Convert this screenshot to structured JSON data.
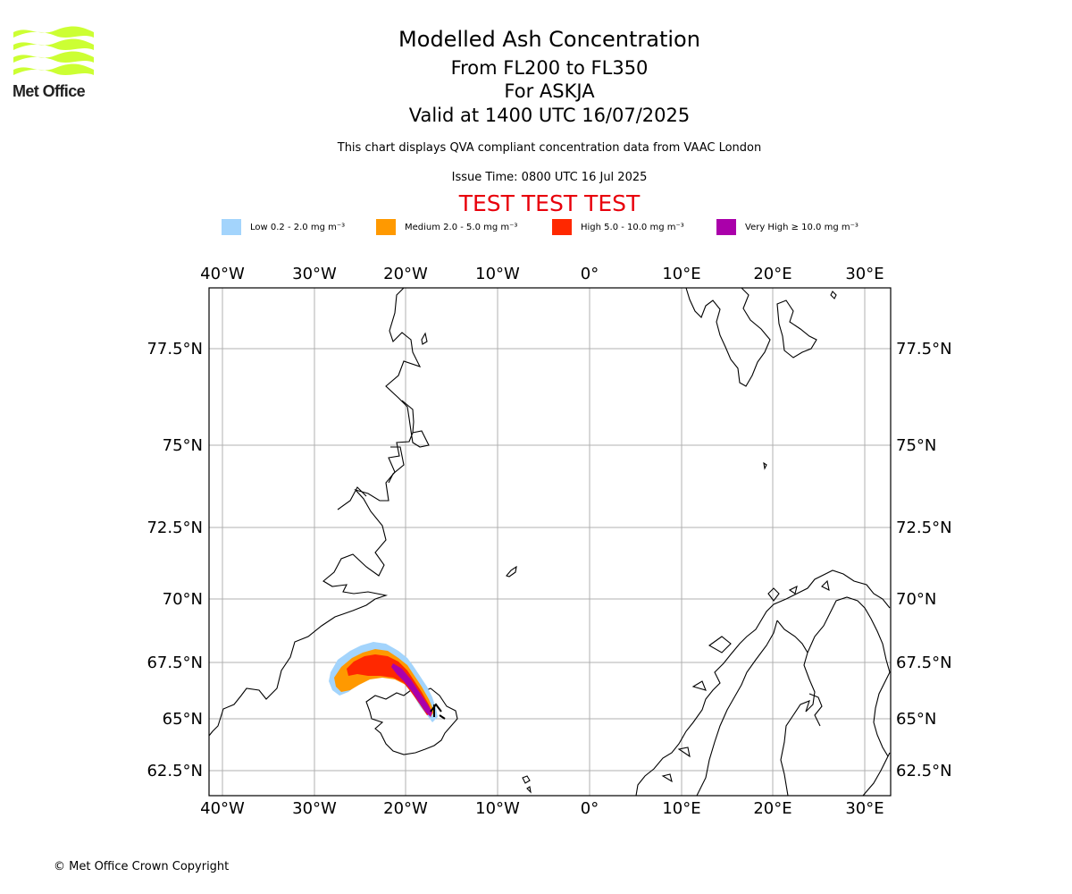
{
  "logo": {
    "text": "Met Office",
    "color": "#ccff33"
  },
  "header": {
    "title": "Modelled Ash Concentration",
    "flight_levels": "From FL200 to FL350",
    "volcano": "For ASKJA",
    "valid_time": "Valid at 1400 UTC 16/07/2025",
    "description": "This chart displays QVA compliant concentration data from VAAC London",
    "issue_time": "Issue Time: 0800 UTC 16 Jul 2025",
    "test_banner": "TEST TEST TEST"
  },
  "legend": [
    {
      "label": "Low 0.2 - 2.0 mg m⁻³",
      "color": "#a3d4fc"
    },
    {
      "label": "Medium 2.0 - 5.0 mg m⁻³",
      "color": "#ff9900"
    },
    {
      "label": "High 5.0 - 10.0 mg m⁻³",
      "color": "#ff2800"
    },
    {
      "label": "Very High ≥ 10.0 mg m⁻³",
      "color": "#aa00aa"
    }
  ],
  "map": {
    "lon_range": [
      -41.5,
      33
    ],
    "lat_breaks": [
      62.5,
      65,
      67.5,
      70,
      72.5,
      75,
      77.5
    ],
    "lon_ticks": [
      "40°W",
      "30°W",
      "20°W",
      "10°W",
      "0°",
      "10°E",
      "20°E",
      "30°E"
    ],
    "lat_ticks": [
      "62.5°N",
      "65°N",
      "67.5°N",
      "70°N",
      "72.5°N",
      "75°N",
      "77.5°N"
    ]
  },
  "copyright": "© Met Office Crown Copyright"
}
